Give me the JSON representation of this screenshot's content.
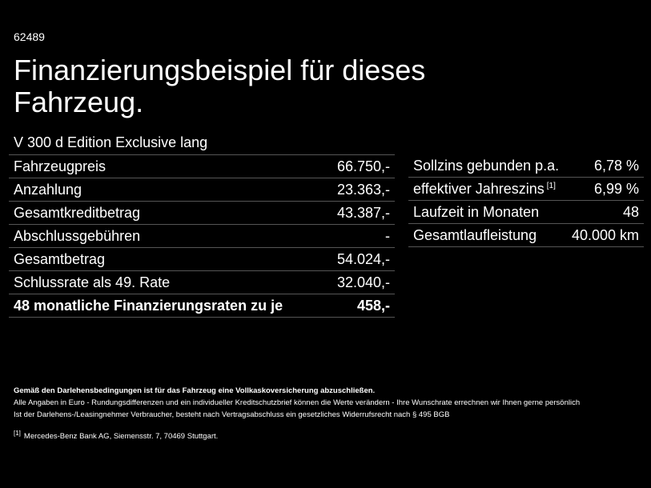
{
  "ref_id": "62489",
  "title_line1": "Finanzierungsbeispiel für dieses",
  "title_line2": "Fahrzeug.",
  "model": "V 300 d Edition Exclusive lang",
  "left_table": [
    {
      "label": "Fahrzeugpreis",
      "value": "66.750,-"
    },
    {
      "label": "Anzahlung",
      "value": "23.363,-"
    },
    {
      "label": "Gesamtkreditbetrag",
      "value": "43.387,-"
    },
    {
      "label": "Abschlussgebühren",
      "value": "-"
    },
    {
      "label": "Gesamtbetrag",
      "value": "54.024,-"
    },
    {
      "label": "Schlussrate als 49. Rate",
      "value": "32.040,-"
    }
  ],
  "total_row": {
    "label": "48 monatliche Finanzierungsraten zu je",
    "value": "458,-"
  },
  "right_table": [
    {
      "label": "Sollzins gebunden p.a.",
      "value": "6,78 %"
    },
    {
      "label": "effektiver Jahreszins",
      "sup": "[1]",
      "value": "6,99 %"
    },
    {
      "label": "Laufzeit in Monaten",
      "value": "48"
    },
    {
      "label": "Gesamtlaufleistung",
      "value": "40.000 km"
    }
  ],
  "notes": {
    "bold_line": "Gemäß den Darlehensbedingungen ist für das Fahrzeug eine Vollkaskoversicherung abzuschließen.",
    "line2": "Alle Angaben in Euro - Rundungsdifferenzen und ein individueller Kreditschutzbrief können die Werte verändern - Ihre Wunschrate errechnen wir Ihnen gerne persönlich",
    "line3": "Ist der Darlehens-/Leasingnehmer Verbraucher, besteht nach Vertragsabschluss ein gesetzliches Widerrufsrecht nach § 495 BGB",
    "footnote_mark": "[1]",
    "footnote_text": "Mercedes-Benz Bank AG, Siemensstr. 7, 70469 Stuttgart."
  }
}
